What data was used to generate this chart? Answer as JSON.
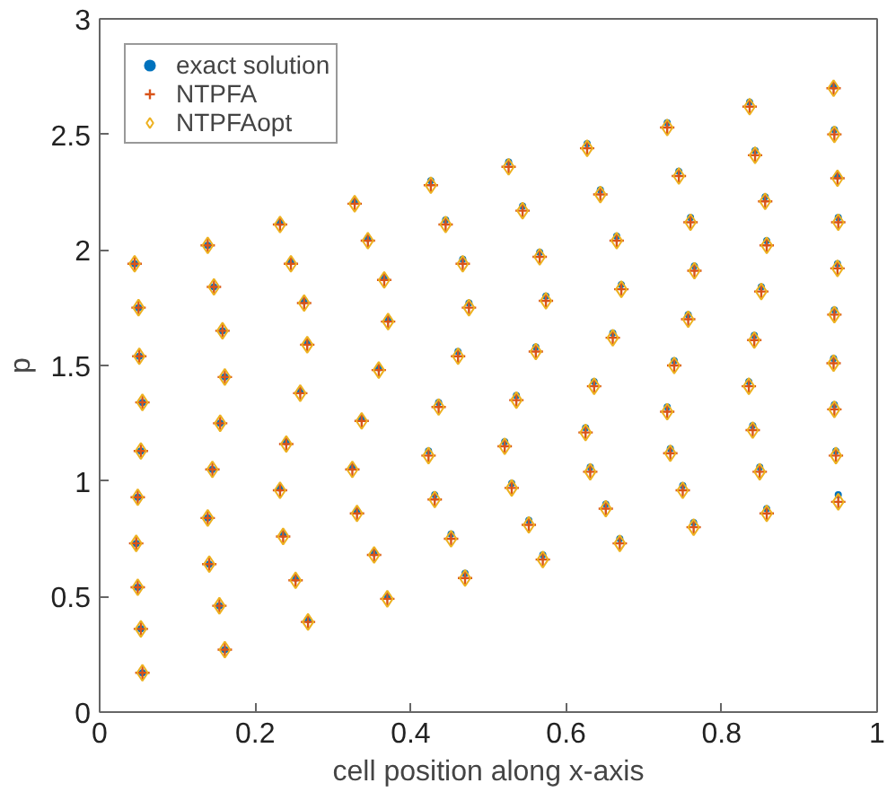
{
  "chart_data": {
    "type": "scatter",
    "xlabel": "cell position along x-axis",
    "ylabel": "p",
    "x": [
      0.045,
      0.05,
      0.051,
      0.055,
      0.053,
      0.049,
      0.047,
      0.049,
      0.053,
      0.055,
      0.139,
      0.147,
      0.158,
      0.161,
      0.155,
      0.145,
      0.139,
      0.141,
      0.154,
      0.161,
      0.232,
      0.246,
      0.263,
      0.267,
      0.258,
      0.24,
      0.232,
      0.236,
      0.252,
      0.268,
      0.328,
      0.345,
      0.366,
      0.371,
      0.359,
      0.337,
      0.325,
      0.331,
      0.353,
      0.37,
      0.426,
      0.445,
      0.467,
      0.475,
      0.461,
      0.436,
      0.423,
      0.431,
      0.452,
      0.47,
      0.526,
      0.544,
      0.566,
      0.574,
      0.561,
      0.536,
      0.521,
      0.53,
      0.552,
      0.57,
      0.627,
      0.644,
      0.665,
      0.671,
      0.66,
      0.636,
      0.625,
      0.631,
      0.651,
      0.669,
      0.73,
      0.745,
      0.76,
      0.765,
      0.757,
      0.739,
      0.73,
      0.734,
      0.75,
      0.764,
      0.836,
      0.843,
      0.856,
      0.858,
      0.851,
      0.842,
      0.835,
      0.84,
      0.849,
      0.858,
      0.944,
      0.945,
      0.949,
      0.95,
      0.949,
      0.945,
      0.944,
      0.945,
      0.947,
      0.95
    ],
    "series": [
      {
        "name": "exact solution",
        "color": "#0072bd",
        "marker": "circle",
        "values": [
          1.94,
          1.75,
          1.54,
          1.34,
          1.13,
          0.93,
          0.73,
          0.54,
          0.36,
          0.17,
          2.02,
          1.84,
          1.65,
          1.45,
          1.25,
          1.05,
          0.84,
          0.64,
          0.46,
          0.27,
          2.12,
          1.95,
          1.78,
          1.6,
          1.39,
          1.17,
          0.97,
          0.77,
          0.58,
          0.4,
          2.21,
          2.05,
          1.88,
          1.7,
          1.49,
          1.27,
          1.06,
          0.87,
          0.69,
          0.5,
          2.3,
          2.13,
          1.96,
          1.77,
          1.56,
          1.34,
          1.13,
          0.94,
          0.77,
          0.6,
          2.38,
          2.19,
          1.99,
          1.8,
          1.58,
          1.37,
          1.17,
          0.99,
          0.83,
          0.68,
          2.46,
          2.26,
          2.06,
          1.85,
          1.64,
          1.43,
          1.23,
          1.06,
          0.9,
          0.75,
          2.55,
          2.34,
          2.14,
          1.93,
          1.72,
          1.52,
          1.32,
          1.14,
          0.98,
          0.82,
          2.64,
          2.43,
          2.23,
          2.04,
          1.84,
          1.63,
          1.43,
          1.24,
          1.06,
          0.88,
          2.71,
          2.52,
          2.32,
          2.14,
          1.94,
          1.74,
          1.53,
          1.33,
          1.13,
          0.94
        ]
      },
      {
        "name": "NTPFA",
        "color": "#d95319",
        "marker": "cross",
        "values": [
          1.94,
          1.75,
          1.54,
          1.34,
          1.13,
          0.93,
          0.73,
          0.54,
          0.36,
          0.17,
          2.02,
          1.84,
          1.65,
          1.45,
          1.25,
          1.05,
          0.84,
          0.64,
          0.46,
          0.27,
          2.11,
          1.94,
          1.77,
          1.59,
          1.38,
          1.16,
          0.96,
          0.76,
          0.57,
          0.39,
          2.2,
          2.04,
          1.87,
          1.69,
          1.48,
          1.26,
          1.05,
          0.86,
          0.68,
          0.49,
          2.28,
          2.11,
          1.94,
          1.75,
          1.54,
          1.32,
          1.11,
          0.92,
          0.75,
          0.58,
          2.36,
          2.17,
          1.97,
          1.78,
          1.56,
          1.35,
          1.15,
          0.97,
          0.81,
          0.66,
          2.44,
          2.24,
          2.04,
          1.83,
          1.62,
          1.41,
          1.21,
          1.04,
          0.88,
          0.73,
          2.53,
          2.32,
          2.12,
          1.91,
          1.7,
          1.5,
          1.3,
          1.12,
          0.96,
          0.8,
          2.62,
          2.41,
          2.21,
          2.02,
          1.82,
          1.61,
          1.41,
          1.22,
          1.04,
          0.86,
          2.7,
          2.5,
          2.31,
          2.12,
          1.92,
          1.72,
          1.51,
          1.31,
          1.11,
          0.91
        ]
      },
      {
        "name": "NTPFAopt",
        "color": "#edb120",
        "marker": "diamond",
        "values": [
          1.94,
          1.75,
          1.54,
          1.34,
          1.13,
          0.93,
          0.73,
          0.54,
          0.36,
          0.17,
          2.02,
          1.84,
          1.65,
          1.45,
          1.25,
          1.05,
          0.84,
          0.64,
          0.46,
          0.27,
          2.11,
          1.94,
          1.77,
          1.59,
          1.38,
          1.16,
          0.96,
          0.76,
          0.57,
          0.39,
          2.2,
          2.04,
          1.87,
          1.69,
          1.48,
          1.26,
          1.05,
          0.86,
          0.68,
          0.49,
          2.28,
          2.11,
          1.94,
          1.75,
          1.54,
          1.32,
          1.11,
          0.92,
          0.75,
          0.58,
          2.36,
          2.17,
          1.97,
          1.78,
          1.56,
          1.35,
          1.15,
          0.97,
          0.81,
          0.66,
          2.44,
          2.24,
          2.04,
          1.83,
          1.62,
          1.41,
          1.21,
          1.04,
          0.88,
          0.73,
          2.53,
          2.32,
          2.12,
          1.91,
          1.7,
          1.5,
          1.3,
          1.12,
          0.96,
          0.8,
          2.62,
          2.41,
          2.21,
          2.02,
          1.82,
          1.61,
          1.41,
          1.22,
          1.04,
          0.86,
          2.7,
          2.5,
          2.31,
          2.12,
          1.92,
          1.72,
          1.51,
          1.31,
          1.11,
          0.91
        ]
      }
    ],
    "xlim": [
      0,
      1
    ],
    "ylim": [
      0,
      3
    ],
    "xticks": [
      0,
      0.2,
      0.4,
      0.6,
      0.8,
      1
    ],
    "yticks": [
      0,
      0.5,
      1,
      1.5,
      2,
      2.5,
      3
    ],
    "grid": false,
    "legend": "top left"
  }
}
